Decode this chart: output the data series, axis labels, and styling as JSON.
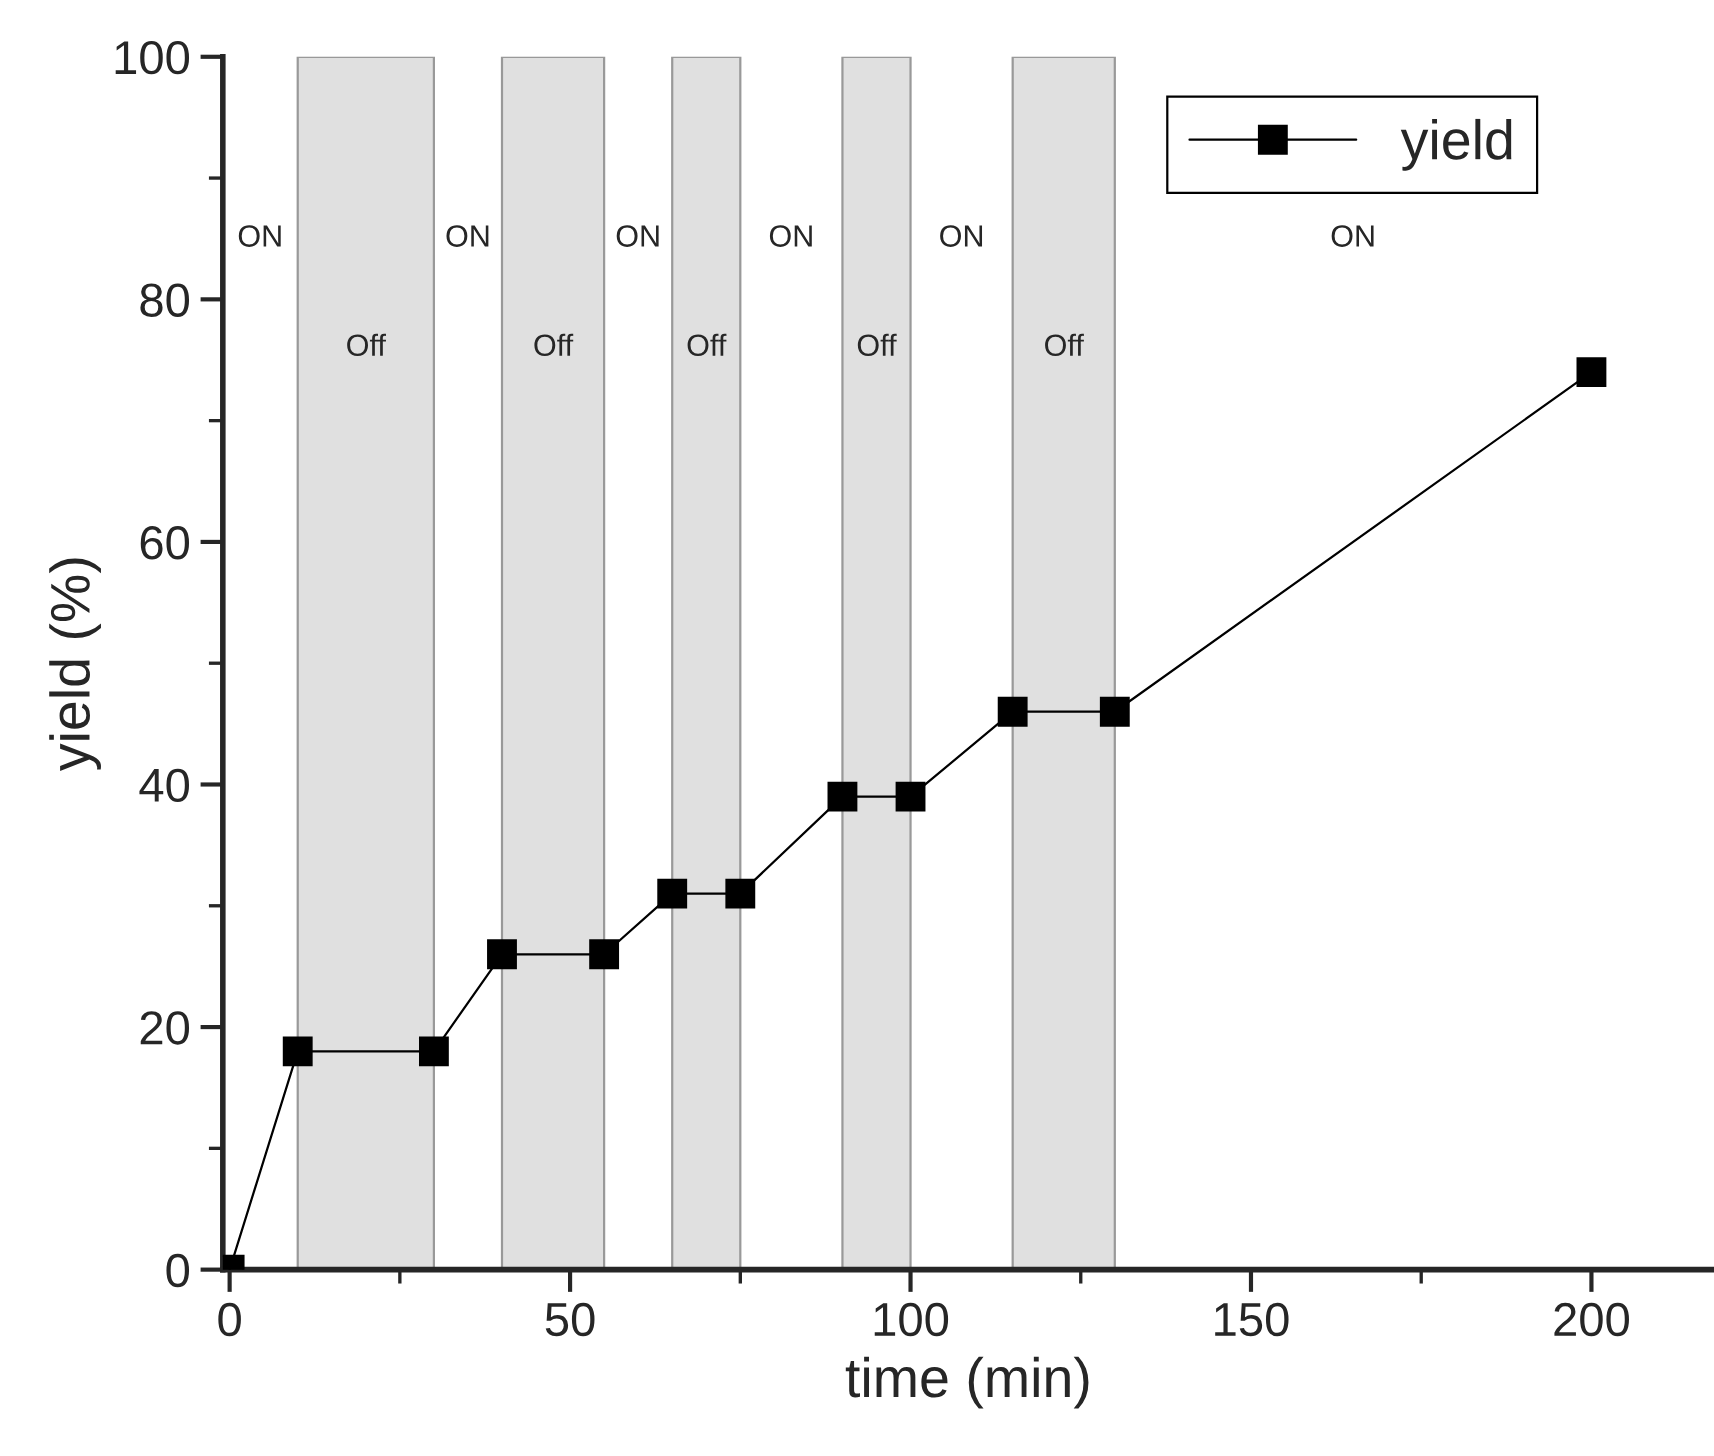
{
  "chart_data": {
    "type": "line",
    "xlabel": "time (min)",
    "ylabel": "yield (%)",
    "x": [
      0,
      10,
      30,
      40,
      55,
      65,
      75,
      90,
      100,
      115,
      130,
      200
    ],
    "series": [
      {
        "name": "yield",
        "color": "#000000",
        "values": [
          0,
          18,
          18,
          26,
          26,
          31,
          31,
          39,
          39,
          46,
          46,
          74
        ]
      }
    ],
    "marker": "square",
    "line_style": "solid",
    "xlim": [
      -1,
      218
    ],
    "xticks": [
      0,
      50,
      100,
      150,
      200
    ],
    "ylim": [
      0,
      100
    ],
    "yticks": [
      0,
      20,
      40,
      60,
      80,
      100
    ],
    "bands": [
      {
        "axis": "x",
        "from": 10,
        "to": 30,
        "label": "Off",
        "color": "#e0e0e0"
      },
      {
        "axis": "x",
        "from": 40,
        "to": 55,
        "label": "Off",
        "color": "#e0e0e0"
      },
      {
        "axis": "x",
        "from": 65,
        "to": 75,
        "label": "Off",
        "color": "#e0e0e0"
      },
      {
        "axis": "x",
        "from": 90,
        "to": 100,
        "label": "Off",
        "color": "#e0e0e0"
      },
      {
        "axis": "x",
        "from": 115,
        "to": 130,
        "label": "Off",
        "color": "#e0e0e0"
      }
    ],
    "annotations": [
      "ON",
      "ON",
      "ON",
      "ON",
      "ON",
      "ON"
    ],
    "grid": false,
    "legend": "top right"
  }
}
